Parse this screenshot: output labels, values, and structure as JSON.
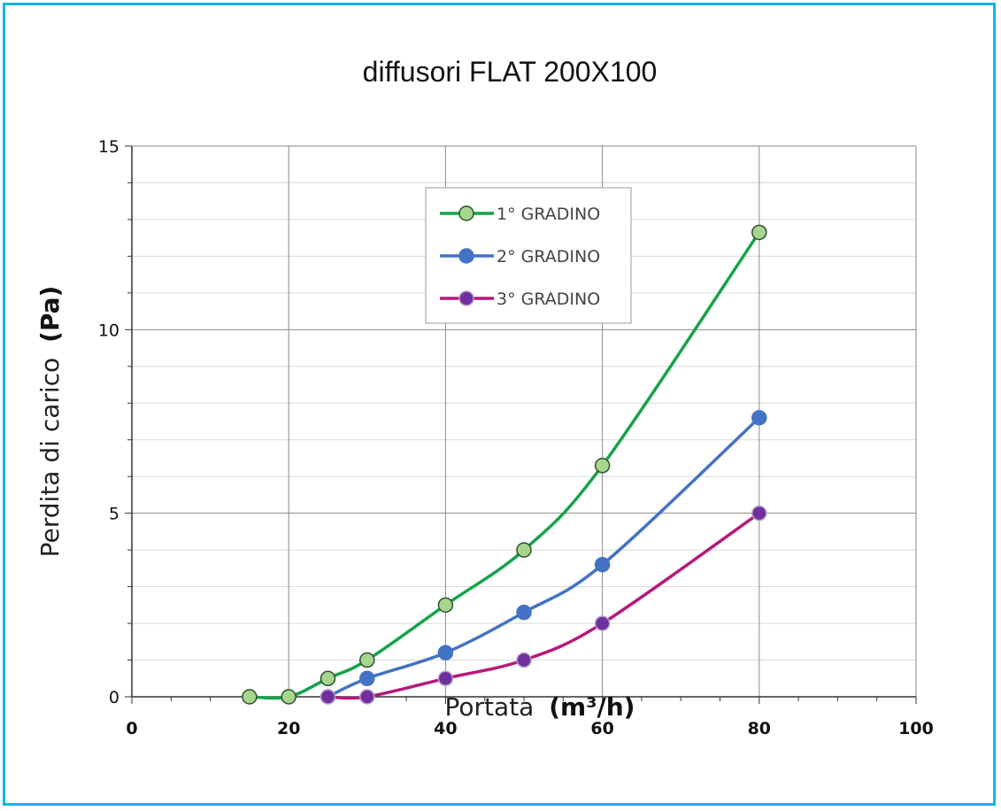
{
  "chart_data": {
    "type": "line",
    "title": "diffusori FLAT 200X100",
    "xlabel": "Portata",
    "xunit": "(m³/h)",
    "ylabel": "Perdita di carico",
    "yunit": "(Pa)",
    "xlim": [
      0,
      100
    ],
    "ylim": [
      0,
      15
    ],
    "xticks": [
      0,
      20,
      40,
      60,
      80,
      100
    ],
    "yticks": [
      0,
      5,
      10,
      15
    ],
    "grid": true,
    "legend_position": "top-center",
    "series": [
      {
        "name": "1° GRADINO",
        "color": "#16a34a",
        "marker_fill": "#a8d58e",
        "marker_stroke": "#2f4f2f",
        "x": [
          15,
          20,
          25,
          30,
          40,
          50,
          60,
          80
        ],
        "y": [
          0,
          0,
          0.5,
          1,
          2.5,
          4,
          6.3,
          12.65
        ]
      },
      {
        "name": "2° GRADINO",
        "color": "#4472c4",
        "marker_fill": "#4472c4",
        "marker_stroke": "#4472c4",
        "x": [
          25,
          30,
          40,
          50,
          60,
          80
        ],
        "y": [
          0,
          0.5,
          1.2,
          2.3,
          3.6,
          7.6
        ]
      },
      {
        "name": "3° GRADINO",
        "color": "#b5197a",
        "marker_fill": "#7030a0",
        "marker_stroke": "#b8a0c8",
        "x": [
          25,
          30,
          40,
          50,
          60,
          80
        ],
        "y": [
          0,
          0,
          0.5,
          1,
          2,
          5
        ]
      }
    ]
  }
}
